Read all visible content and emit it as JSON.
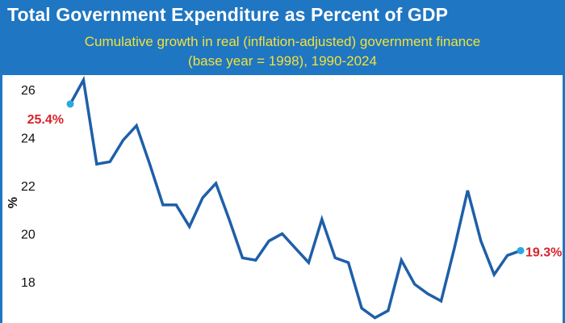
{
  "header": {
    "title": "Total Government Expenditure as Percent of GDP",
    "subtitle_line1": "Cumulative growth in real (inflation-adjusted) government finance",
    "subtitle_line2": "(base year = 1998), 1990-2024"
  },
  "colors": {
    "header_bg": "#1f76c2",
    "title": "#ffffff",
    "subtitle": "#f2e23a",
    "line": "#1f5fa8",
    "endpoint_dot": "#2aa9e0",
    "annotation": "#d6232a"
  },
  "chart_data": {
    "type": "line",
    "title": "Total Government Expenditure as Percent of GDP",
    "subtitle": "Cumulative growth in real (inflation-adjusted) government finance (base year = 1998), 1990-2024",
    "xlabel": "",
    "ylabel": "%",
    "ylim": [
      16,
      26.5
    ],
    "yticks": [
      18,
      20,
      22,
      24,
      26
    ],
    "grid": false,
    "series": [
      {
        "values": [
          25.4,
          26.4,
          22.9,
          23.0,
          23.9,
          24.5,
          22.9,
          21.2,
          21.2,
          20.3,
          21.5,
          22.1,
          20.6,
          19.0,
          18.9,
          19.7,
          20.0,
          19.4,
          18.8,
          20.6,
          19.0,
          18.8,
          16.9,
          16.5,
          16.8,
          18.9,
          17.9,
          17.5,
          17.2,
          19.4,
          21.8,
          19.7,
          18.3,
          19.1,
          19.3
        ]
      }
    ],
    "annotations": [
      {
        "label": "25.4%",
        "point_index": 0
      },
      {
        "label": "19.3%",
        "point_index": 34
      }
    ]
  }
}
